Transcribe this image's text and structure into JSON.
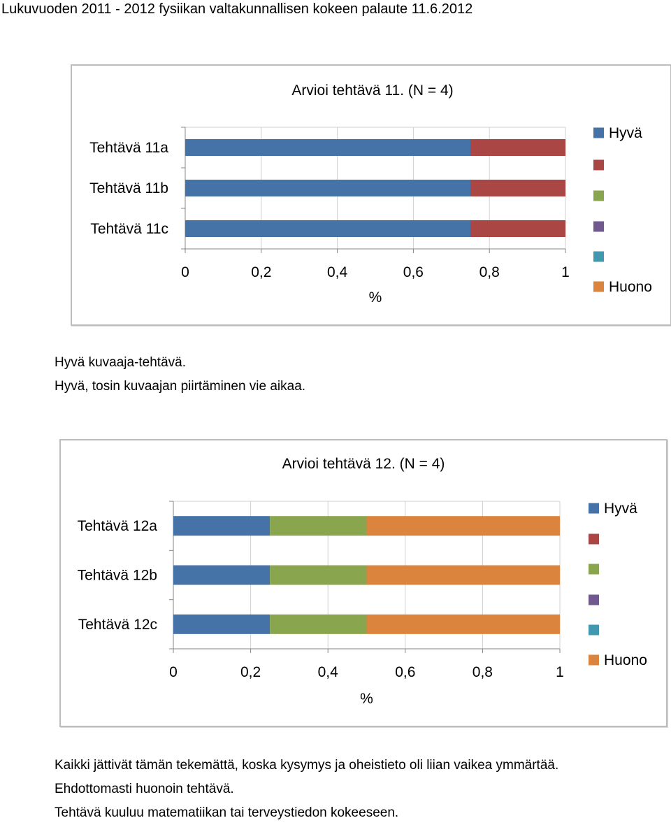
{
  "page": {
    "header": "Lukuvuoden 2011 - 2012 fysiikan valtakunnallisen kokeen palaute 11.6.2012"
  },
  "comments": [
    [
      "Hyvä kuvaaja-tehtävä.",
      "Hyvä, tosin kuvaajan piirtäminen vie aikaa."
    ],
    [
      "Kaikki jättivät tämän tekemättä, koska kysymys ja oheistieto oli liian vaikea ymmärtää.",
      "Ehdottomasti huonoin tehtävä.",
      "Tehtävä kuuluu matematiikan tai terveystiedon kokeeseen."
    ]
  ],
  "chart_data": [
    {
      "type": "bar",
      "orientation": "horizontal",
      "stacked": true,
      "title": "Arvioi tehtävä 11.  (N = 4)",
      "xlabel": "%",
      "ylabel": "",
      "xlim": [
        0,
        1
      ],
      "xticks": [
        "0",
        "0,2",
        "0,4",
        "0,6",
        "0,8",
        "1"
      ],
      "grid": true,
      "legend_position": "right",
      "categories": [
        "Tehtävä 11a",
        "Tehtävä 11b",
        "Tehtävä 11c"
      ],
      "series": [
        {
          "name": "Hyvä",
          "color": "#4572a7",
          "values": [
            0.75,
            0.75,
            0.75
          ]
        },
        {
          "name": "",
          "color": "#aa4643",
          "values": [
            0.25,
            0.25,
            0.25
          ]
        },
        {
          "name": "",
          "color": "#89a54e",
          "values": [
            0,
            0,
            0
          ]
        },
        {
          "name": "",
          "color": "#71588f",
          "values": [
            0,
            0,
            0
          ]
        },
        {
          "name": "",
          "color": "#4198af",
          "values": [
            0,
            0,
            0
          ]
        },
        {
          "name": "Huono",
          "color": "#db843d",
          "values": [
            0,
            0,
            0
          ]
        }
      ]
    },
    {
      "type": "bar",
      "orientation": "horizontal",
      "stacked": true,
      "title": "Arvioi tehtävä 12.  (N = 4)",
      "xlabel": "%",
      "ylabel": "",
      "xlim": [
        0,
        1
      ],
      "xticks": [
        "0",
        "0,2",
        "0,4",
        "0,6",
        "0,8",
        "1"
      ],
      "grid": true,
      "legend_position": "right",
      "categories": [
        "Tehtävä 12a",
        "Tehtävä 12b",
        "Tehtävä 12c"
      ],
      "series": [
        {
          "name": "Hyvä",
          "color": "#4572a7",
          "values": [
            0.25,
            0.25,
            0.25
          ]
        },
        {
          "name": "",
          "color": "#aa4643",
          "values": [
            0,
            0,
            0
          ]
        },
        {
          "name": "",
          "color": "#89a54e",
          "values": [
            0.25,
            0.25,
            0.25
          ]
        },
        {
          "name": "",
          "color": "#71588f",
          "values": [
            0,
            0,
            0
          ]
        },
        {
          "name": "",
          "color": "#4198af",
          "values": [
            0,
            0,
            0
          ]
        },
        {
          "name": "Huono",
          "color": "#db843d",
          "values": [
            0.5,
            0.5,
            0.5
          ]
        }
      ]
    }
  ]
}
